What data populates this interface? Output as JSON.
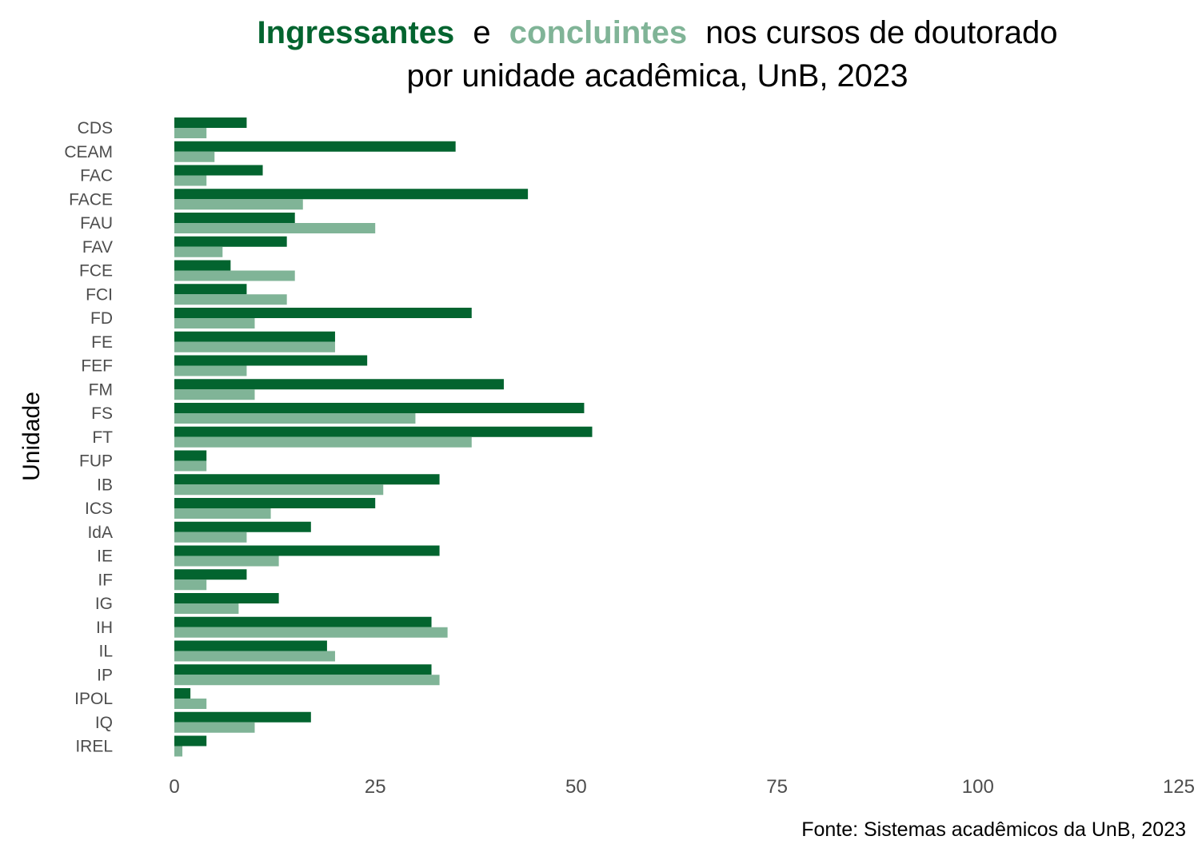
{
  "colors": {
    "ingressantes": "#03642f",
    "concluintes": "#80b497",
    "text": "#000000",
    "axis_text": "#4d4d4d"
  },
  "title": {
    "series1_word": "Ingressantes",
    "joiner": "e",
    "series2_word": "concluintes",
    "rest_line1": "nos cursos de doutorado",
    "line2": "por unidade acadêmica, UnB, 2023"
  },
  "caption": "Fonte: Sistemas acadêmicos da UnB, 2023",
  "chart_data": {
    "type": "bar",
    "orientation": "horizontal",
    "ylabel": "Unidade",
    "xlabel": "",
    "xlim": [
      0,
      125
    ],
    "xticks": [
      0,
      25,
      50,
      75,
      100,
      125
    ],
    "grid": false,
    "legend": "none (series colors shown in title)",
    "categories": [
      "CDS",
      "CEAM",
      "FAC",
      "FACE",
      "FAU",
      "FAV",
      "FCE",
      "FCI",
      "FD",
      "FE",
      "FEF",
      "FM",
      "FS",
      "FT",
      "FUP",
      "IB",
      "ICS",
      "IdA",
      "IE",
      "IF",
      "IG",
      "IH",
      "IL",
      "IP",
      "IPOL",
      "IQ",
      "IREL"
    ],
    "series": [
      {
        "name": "Ingressantes",
        "values": [
          9,
          35,
          11,
          44,
          15,
          14,
          7,
          9,
          37,
          20,
          24,
          41,
          51,
          52,
          4,
          33,
          25,
          17,
          33,
          9,
          13,
          32,
          19,
          32,
          2,
          17,
          4
        ]
      },
      {
        "name": "concluintes",
        "values": [
          4,
          5,
          4,
          16,
          25,
          6,
          15,
          14,
          10,
          20,
          9,
          10,
          30,
          37,
          4,
          26,
          12,
          9,
          13,
          4,
          8,
          34,
          20,
          33,
          4,
          10,
          1
        ]
      }
    ]
  }
}
